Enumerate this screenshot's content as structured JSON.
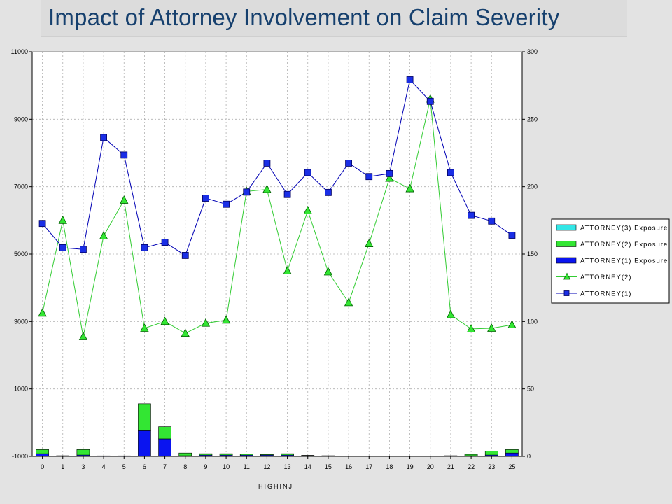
{
  "title": "Impact of Attorney Involvement on Claim Severity",
  "chart_data": {
    "type": "bar+line",
    "title": "Impact of Attorney Involvement on Claim Severity",
    "xlabel": "HIGHINJ",
    "ylabel_left": "",
    "ylabel_right": "",
    "ylim_left": [
      -1000,
      11000
    ],
    "ylim_right": [
      0,
      300
    ],
    "yticks_left": [
      "-1000",
      "1000",
      "3000",
      "5000",
      "7000",
      "9000",
      "11000"
    ],
    "yticks_right": [
      "0",
      "50",
      "100",
      "150",
      "200",
      "250",
      "300"
    ],
    "grid": true,
    "legend_position": "right",
    "categories": [
      "0",
      "1",
      "3",
      "4",
      "5",
      "6",
      "7",
      "8",
      "9",
      "10",
      "11",
      "12",
      "13",
      "14",
      "15",
      "16",
      "17",
      "18",
      "19",
      "20",
      "21",
      "22",
      "23",
      "25"
    ],
    "series": [
      {
        "name": "ATTORNEY(1) Exposure",
        "type": "stacked_bar",
        "axis": "right",
        "color": "#0a14f0",
        "values": [
          2,
          0.3,
          1,
          0.2,
          0.2,
          19,
          13,
          0.5,
          1,
          1,
          1,
          1,
          1,
          0.5,
          0.3,
          0,
          0,
          0,
          0,
          0,
          0.3,
          0.5,
          1,
          2.5
        ]
      },
      {
        "name": "ATTORNEY(2) Exposure",
        "type": "stacked_bar",
        "axis": "right",
        "color": "#33e633",
        "values": [
          3,
          0.2,
          4,
          0.2,
          0.2,
          20,
          9,
          2,
          1,
          1,
          0.8,
          0.5,
          1,
          0.3,
          0.2,
          0,
          0,
          0,
          0,
          0,
          0.2,
          1,
          3,
          2.5
        ]
      },
      {
        "name": "ATTORNEY(3) Exposure",
        "type": "stacked_bar",
        "axis": "right",
        "color": "#33e6e6",
        "values": [
          0,
          0,
          0,
          0,
          0,
          0,
          0,
          0,
          0,
          0,
          0,
          0,
          0,
          0,
          0,
          0,
          0,
          0,
          0,
          0,
          0,
          0,
          0,
          0
        ]
      },
      {
        "name": "ATTORNEY(2)",
        "type": "line",
        "axis": "left",
        "marker": "triangle",
        "color": "#33cc33",
        "values": [
          3250,
          6000,
          2550,
          5540,
          6600,
          2800,
          3000,
          2650,
          2950,
          3040,
          6860,
          6920,
          4500,
          6290,
          4470,
          3560,
          5310,
          7250,
          6940,
          9600,
          3200,
          2780,
          2800,
          2900
        ]
      },
      {
        "name": "ATTORNEY(1)",
        "type": "line",
        "axis": "left",
        "marker": "square",
        "color": "#0000b4",
        "values": [
          5910,
          5190,
          5140,
          8460,
          7940,
          5190,
          5350,
          4960,
          6660,
          6480,
          6840,
          7700,
          6770,
          7420,
          6830,
          7700,
          7300,
          7390,
          10170,
          9530,
          7420,
          6150,
          5980,
          5560
        ]
      }
    ]
  }
}
